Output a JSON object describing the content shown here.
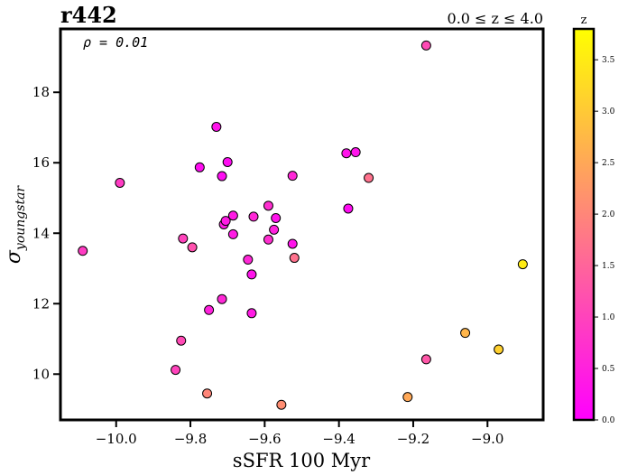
{
  "chart_data": {
    "type": "scatter",
    "title": "r442",
    "subtitle": "0.0 ≤ z ≤ 4.0",
    "annotation": "ρ = 0.01",
    "xlabel": "sSFR 100 Myr",
    "ylabel_main": "σ",
    "ylabel_sub": "youngstar",
    "xlim": [
      -10.15,
      -8.85
    ],
    "ylim": [
      8.7,
      19.8
    ],
    "xticks": [
      -10.0,
      -9.8,
      -9.6,
      -9.4,
      -9.2,
      -9.0
    ],
    "xtick_labels": [
      "−10.0",
      "−9.8",
      "−9.6",
      "−9.4",
      "−9.2",
      "−9.0"
    ],
    "yticks": [
      10,
      12,
      14,
      16,
      18
    ],
    "ytick_labels": [
      "10",
      "12",
      "14",
      "16",
      "18"
    ],
    "colorbar": {
      "label": "z",
      "range": [
        0.0,
        3.8
      ],
      "colormap": "spring",
      "ticks": [
        0.0,
        0.5,
        1.0,
        1.5,
        2.0,
        2.5,
        3.0,
        3.5
      ],
      "tick_labels": [
        "0.0",
        "0.5",
        "1.0",
        "1.5",
        "2.0",
        "2.5",
        "3.0",
        "3.5"
      ]
    },
    "grid": false,
    "points": [
      {
        "x": -10.09,
        "y": 13.5,
        "z": 0.9
      },
      {
        "x": -9.99,
        "y": 15.43,
        "z": 0.9
      },
      {
        "x": -9.84,
        "y": 10.12,
        "z": 1.0
      },
      {
        "x": -9.825,
        "y": 10.95,
        "z": 1.1
      },
      {
        "x": -9.82,
        "y": 13.85,
        "z": 1.0
      },
      {
        "x": -9.795,
        "y": 13.6,
        "z": 1.2
      },
      {
        "x": -9.775,
        "y": 15.87,
        "z": 0.2
      },
      {
        "x": -9.755,
        "y": 9.45,
        "z": 2.0
      },
      {
        "x": -9.75,
        "y": 11.82,
        "z": 0.5
      },
      {
        "x": -9.73,
        "y": 17.02,
        "z": 0.3
      },
      {
        "x": -9.715,
        "y": 15.62,
        "z": 0.2
      },
      {
        "x": -9.715,
        "y": 12.13,
        "z": 0.6
      },
      {
        "x": -9.71,
        "y": 14.25,
        "z": 0.4
      },
      {
        "x": -9.705,
        "y": 14.35,
        "z": 0.4
      },
      {
        "x": -9.7,
        "y": 16.02,
        "z": 0.2
      },
      {
        "x": -9.685,
        "y": 14.5,
        "z": 0.4
      },
      {
        "x": -9.685,
        "y": 13.97,
        "z": 0.4
      },
      {
        "x": -9.645,
        "y": 13.25,
        "z": 0.6
      },
      {
        "x": -9.635,
        "y": 12.83,
        "z": 0.3
      },
      {
        "x": -9.635,
        "y": 11.73,
        "z": 0.4
      },
      {
        "x": -9.63,
        "y": 14.47,
        "z": 0.6
      },
      {
        "x": -9.59,
        "y": 14.78,
        "z": 0.7
      },
      {
        "x": -9.59,
        "y": 13.82,
        "z": 0.7
      },
      {
        "x": -9.575,
        "y": 14.1,
        "z": 0.5
      },
      {
        "x": -9.57,
        "y": 14.43,
        "z": 0.3
      },
      {
        "x": -9.555,
        "y": 9.13,
        "z": 2.1
      },
      {
        "x": -9.525,
        "y": 15.63,
        "z": 0.6
      },
      {
        "x": -9.525,
        "y": 13.7,
        "z": 0.3
      },
      {
        "x": -9.52,
        "y": 13.3,
        "z": 1.7
      },
      {
        "x": -9.38,
        "y": 16.27,
        "z": 0.3
      },
      {
        "x": -9.375,
        "y": 14.7,
        "z": 0.2
      },
      {
        "x": -9.355,
        "y": 16.3,
        "z": 0.3
      },
      {
        "x": -9.32,
        "y": 15.57,
        "z": 1.7
      },
      {
        "x": -9.215,
        "y": 9.35,
        "z": 2.5
      },
      {
        "x": -9.165,
        "y": 19.33,
        "z": 1.1
      },
      {
        "x": -9.165,
        "y": 10.42,
        "z": 1.3
      },
      {
        "x": -9.06,
        "y": 11.17,
        "z": 2.7
      },
      {
        "x": -8.97,
        "y": 10.7,
        "z": 3.1
      },
      {
        "x": -8.905,
        "y": 13.12,
        "z": 3.5
      }
    ]
  }
}
